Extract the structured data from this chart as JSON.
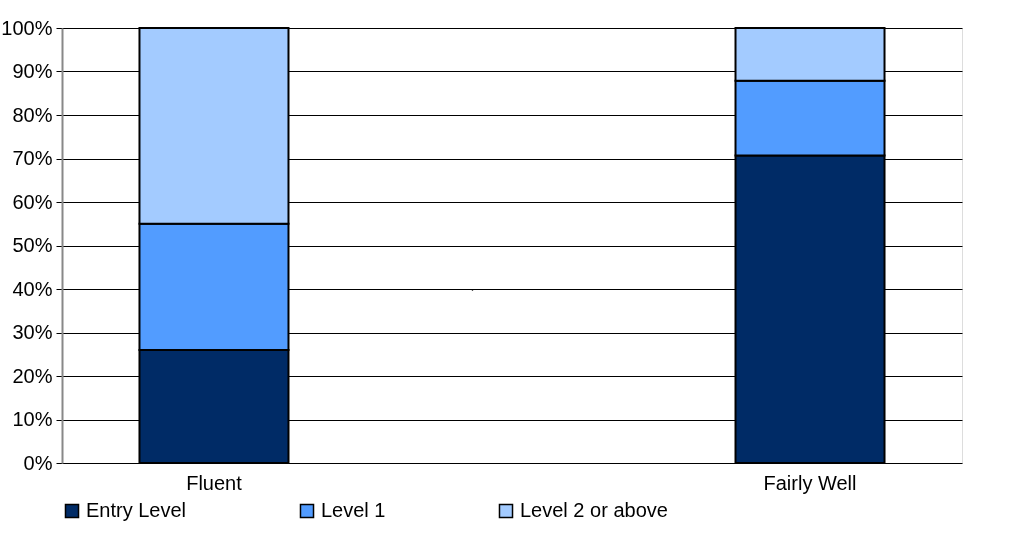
{
  "chart_data": {
    "type": "bar",
    "stacked": true,
    "categories": [
      "Fluent",
      "Fairly Well"
    ],
    "series": [
      {
        "name": "Entry Level",
        "color": "#002b66",
        "values": [
          26,
          70.7
        ]
      },
      {
        "name": "Level 1",
        "color": "#529cff",
        "values": [
          29,
          17.2
        ]
      },
      {
        "name": "Level 2 or above",
        "color": "#a3cbff",
        "values": [
          45,
          12.1
        ]
      }
    ],
    "ylim": [
      0,
      100
    ],
    "yticks": [
      {
        "value": 0,
        "label": "0%"
      },
      {
        "value": 10,
        "label": "10%"
      },
      {
        "value": 20,
        "label": "20%"
      },
      {
        "value": 30,
        "label": "30%"
      },
      {
        "value": 40,
        "label": "40%"
      },
      {
        "value": 50,
        "label": "50%"
      },
      {
        "value": 60,
        "label": "60%"
      },
      {
        "value": 70,
        "label": "70%"
      },
      {
        "value": 80,
        "label": "80%"
      },
      {
        "value": 90,
        "label": "90%"
      },
      {
        "value": 100,
        "label": "100%"
      }
    ],
    "grid": "y",
    "legend": "bottom",
    "annotations": [
      "`"
    ]
  }
}
